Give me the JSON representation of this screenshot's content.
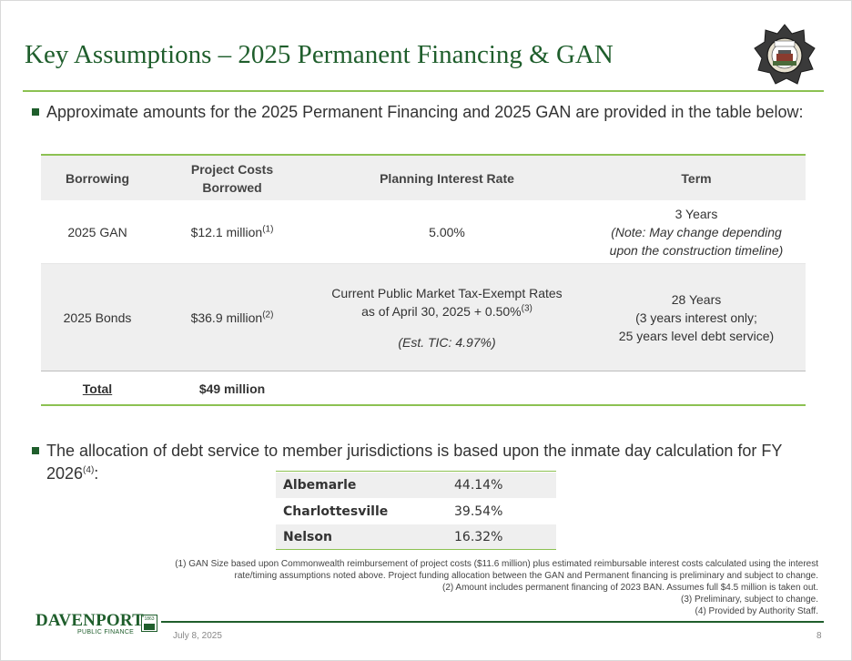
{
  "title": "Key Assumptions – 2025 Permanent Financing & GAN",
  "bullet1": "Approximate amounts for the 2025 Permanent Financing and 2025 GAN are provided in the table below:",
  "table": {
    "headers": {
      "borrowing": "Borrowing",
      "project_costs_line1": "Project Costs",
      "project_costs_line2": "Borrowed",
      "rate": "Planning Interest Rate",
      "term": "Term"
    },
    "gan": {
      "borrowing": "2025 GAN",
      "amount": "$12.1 million",
      "amount_note": "(1)",
      "rate": "5.00%",
      "term_line1": "3 Years",
      "term_line2": "(Note: May change depending",
      "term_line3": "upon the construction timeline)"
    },
    "bonds": {
      "borrowing": "2025 Bonds",
      "amount": "$36.9 million",
      "amount_note": "(2)",
      "rate_line1": "Current Public Market Tax-Exempt Rates",
      "rate_line2": "as of April 30, 2025 + 0.50%",
      "rate_note": "(3)",
      "rate_line3": "(Est. TIC: 4.97%)",
      "term_line1": "28 Years",
      "term_line2": "(3 years interest only;",
      "term_line3": "25 years level debt service)"
    },
    "total": {
      "label": "Total",
      "amount": "$49 million"
    }
  },
  "bullet2": "The allocation of debt service to member jurisdictions is based upon the inmate day calculation for FY",
  "bullet2_line2": "2026",
  "bullet2_note": "(4)",
  "bullet2_tail": ":",
  "allocation": [
    {
      "name": "Albemarle",
      "percent": "44.14%"
    },
    {
      "name": "Charlottesville",
      "percent": "39.54%"
    },
    {
      "name": "Nelson",
      "percent": "16.32%"
    }
  ],
  "footnotes": [
    "(1) GAN Size based upon Commonwealth reimbursement of project costs ($11.6 million) plus estimated reimbursable interest costs calculated using the interest",
    "rate/timing assumptions noted above. Project funding allocation between the GAN and Permanent financing is preliminary and subject to change.",
    "(2) Amount includes permanent financing of 2023 BAN. Assumes full $4.5 million is taken out.",
    "(3) Preliminary, subject to change.",
    "(4) Provided by Authority Staff."
  ],
  "footer": {
    "logo_word": "DAVENPORT",
    "logo_sub": "PUBLIC FINANCE",
    "logo_year": "1863",
    "date": "July 8, 2025",
    "page": "8"
  },
  "colors": {
    "title_green": "#1f5e2c",
    "rule_green": "#8cc152",
    "row_shade": "#efefef"
  }
}
